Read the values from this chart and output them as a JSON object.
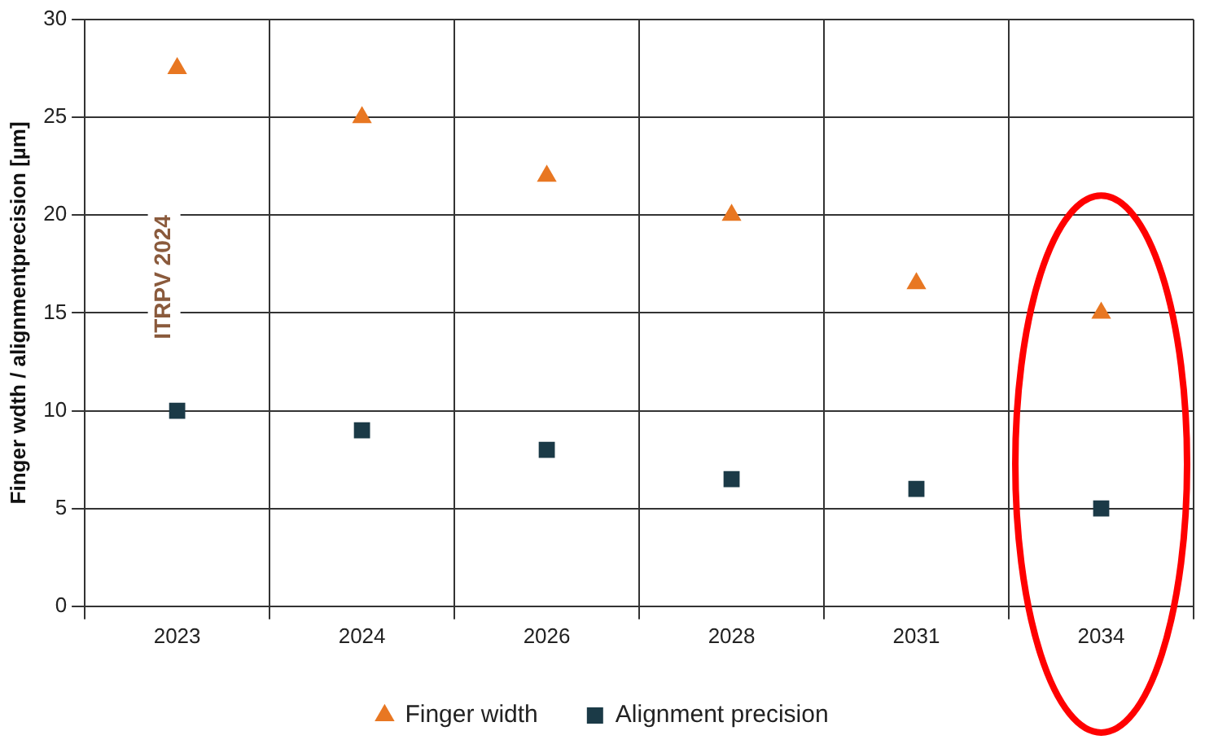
{
  "chart_data": {
    "type": "scatter",
    "ylabel": "Finger wdth / alignmentprecision [µm]",
    "categories": [
      "2023",
      "2024",
      "2026",
      "2028",
      "2031",
      "2034"
    ],
    "series": [
      {
        "name": "Finger width",
        "color": "#e87722",
        "marker": "triangle",
        "values": [
          27.5,
          25,
          22,
          20,
          16.5,
          15
        ]
      },
      {
        "name": "Alignment precision",
        "color": "#1b3a47",
        "marker": "square",
        "values": [
          10,
          9,
          8,
          6.5,
          6,
          5
        ]
      }
    ],
    "ylim": [
      0,
      30
    ],
    "yticks": [
      0,
      5,
      10,
      15,
      20,
      25,
      30
    ],
    "grid": true,
    "legend": "bottom",
    "annotations": [
      "ITRPV 2024"
    ]
  }
}
